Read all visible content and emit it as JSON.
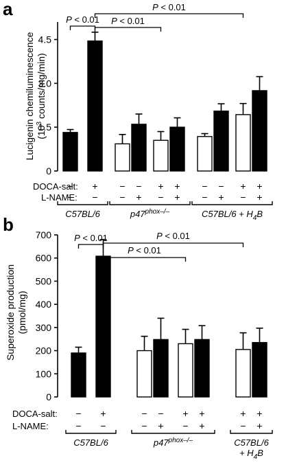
{
  "colors": {
    "filled": "#000000",
    "open": "#ffffff",
    "stroke": "#000000"
  },
  "chart_data": [
    {
      "panel": "a",
      "type": "bar",
      "ylabel": "Lucigenin chemiluminescence",
      "ylabel_units": "(10³ counts/mg/min)",
      "ylabel_sup": "3",
      "ylim": [
        0,
        5.1
      ],
      "yticks": [
        "0",
        "1.5",
        "3.0",
        "4.5"
      ],
      "yticks_values": [
        0,
        1.5,
        3.0,
        4.5
      ],
      "row_labels": [
        "DOCA-salt:",
        "L-NAME:"
      ],
      "bars": [
        {
          "value": 1.32,
          "error": 0.1,
          "fill": "filled",
          "doca": "−",
          "lname": "−"
        },
        {
          "value": 4.45,
          "error": 0.3,
          "fill": "filled",
          "doca": "+",
          "lname": "−"
        },
        {
          "value": 0.93,
          "error": 0.32,
          "fill": "open",
          "doca": "−",
          "lname": "−"
        },
        {
          "value": 1.6,
          "error": 0.35,
          "fill": "filled",
          "doca": "−",
          "lname": "+"
        },
        {
          "value": 1.05,
          "error": 0.3,
          "fill": "open",
          "doca": "+",
          "lname": "−"
        },
        {
          "value": 1.5,
          "error": 0.32,
          "fill": "filled",
          "doca": "+",
          "lname": "+"
        },
        {
          "value": 1.18,
          "error": 0.1,
          "fill": "open",
          "doca": "−",
          "lname": "−"
        },
        {
          "value": 2.05,
          "error": 0.25,
          "fill": "filled",
          "doca": "−",
          "lname": "+"
        },
        {
          "value": 1.93,
          "error": 0.38,
          "fill": "open",
          "doca": "+",
          "lname": "−"
        },
        {
          "value": 2.75,
          "error": 0.48,
          "fill": "filled",
          "doca": "+",
          "lname": "+"
        }
      ],
      "groups": [
        {
          "label": "C57BL/6",
          "bars": [
            0,
            1
          ]
        },
        {
          "label": "p47",
          "sup": "phox–/–",
          "bars": [
            2,
            5
          ]
        },
        {
          "label": "C57BL/6 + H",
          "sub": "4",
          "tail": "B",
          "bars": [
            6,
            9
          ]
        }
      ],
      "significance": [
        {
          "text": "P < 0.01",
          "from": 0,
          "to": 1
        },
        {
          "text": "P < 0.01",
          "from": 1,
          "to": 4
        },
        {
          "text": "P < 0.01",
          "from": 1,
          "to": 8
        }
      ]
    },
    {
      "panel": "b",
      "type": "bar",
      "ylabel": "Superoxide production",
      "ylabel_units": "(pmol/mg)",
      "ylim": [
        0,
        700
      ],
      "yticks": [
        "0",
        "100",
        "200",
        "300",
        "400",
        "500",
        "600",
        "700"
      ],
      "yticks_values": [
        0,
        100,
        200,
        300,
        400,
        500,
        600,
        700
      ],
      "row_labels": [
        "DOCA-salt:",
        "L-NAME:"
      ],
      "bars": [
        {
          "value": 190,
          "error": 25,
          "fill": "filled",
          "doca": "−",
          "lname": "−"
        },
        {
          "value": 608,
          "error": 72,
          "fill": "filled",
          "doca": "+",
          "lname": "−"
        },
        {
          "value": 200,
          "error": 62,
          "fill": "open",
          "doca": "−",
          "lname": "−"
        },
        {
          "value": 248,
          "error": 92,
          "fill": "filled",
          "doca": "−",
          "lname": "+"
        },
        {
          "value": 230,
          "error": 62,
          "fill": "open",
          "doca": "+",
          "lname": "−"
        },
        {
          "value": 248,
          "error": 60,
          "fill": "filled",
          "doca": "+",
          "lname": "+"
        },
        {
          "value": 205,
          "error": 72,
          "fill": "open",
          "doca": "+",
          "lname": "−"
        },
        {
          "value": 235,
          "error": 62,
          "fill": "filled",
          "doca": "+",
          "lname": "+"
        }
      ],
      "groups": [
        {
          "label": "C57BL/6",
          "bars": [
            0,
            1
          ]
        },
        {
          "label": "p47",
          "sup": "phox–/–",
          "bars": [
            2,
            5
          ]
        },
        {
          "label": "C57BL/6",
          "line2": "+ H",
          "sub": "4",
          "tail": "B",
          "bars": [
            6,
            7
          ]
        }
      ],
      "significance": [
        {
          "text": "P < 0.01",
          "from": 0,
          "to": 1
        },
        {
          "text": "P < 0.01",
          "from": 1,
          "to": 4
        },
        {
          "text": "P < 0.01",
          "from": 1,
          "to": 6
        }
      ]
    }
  ]
}
